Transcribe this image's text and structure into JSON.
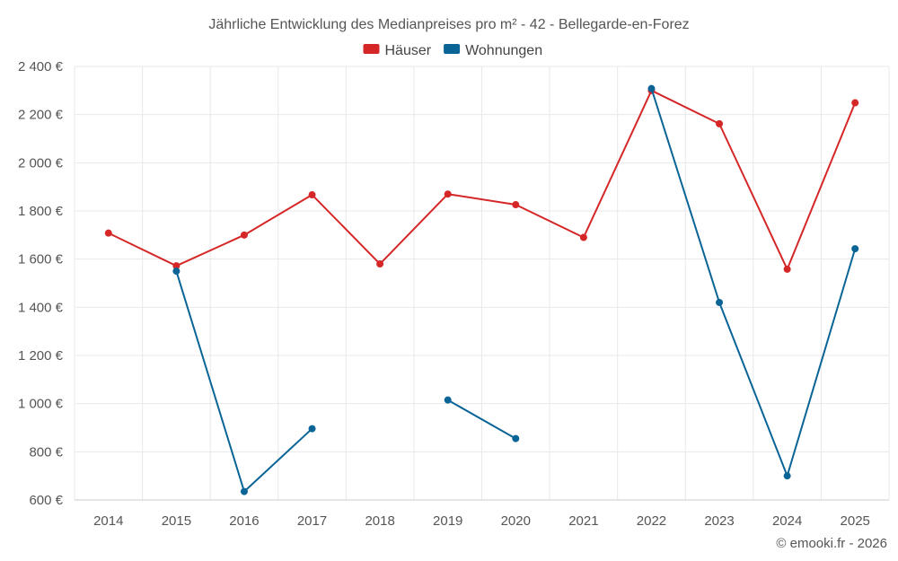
{
  "chart_data": {
    "type": "line",
    "title": "Jährliche Entwicklung des Medianpreises pro m² - 42 - Bellegarde-en-Forez",
    "x": [
      "2014",
      "2015",
      "2016",
      "2017",
      "2018",
      "2019",
      "2020",
      "2021",
      "2022",
      "2023",
      "2024",
      "2025"
    ],
    "ylim": [
      600,
      2400
    ],
    "yticks": [
      "600 €",
      "800 €",
      "1 000 €",
      "1 200 €",
      "1 400 €",
      "1 600 €",
      "1 800 €",
      "2 000 €",
      "2 200 €",
      "2 400 €"
    ],
    "grid": true,
    "legend_position": "top-center",
    "series": [
      {
        "name": "Häuser",
        "color": "#d62728",
        "values": [
          1708,
          1572,
          1700,
          1867,
          1580,
          1870,
          1826,
          1690,
          2300,
          2162,
          1558,
          2249
        ]
      },
      {
        "name": "Wohnungen",
        "color": "#0a6496",
        "values": [
          null,
          1550,
          635,
          896,
          null,
          1015,
          855,
          null,
          2308,
          1420,
          700,
          1643
        ]
      }
    ]
  },
  "footer": {
    "copyright": "© emooki.fr - 2026"
  }
}
